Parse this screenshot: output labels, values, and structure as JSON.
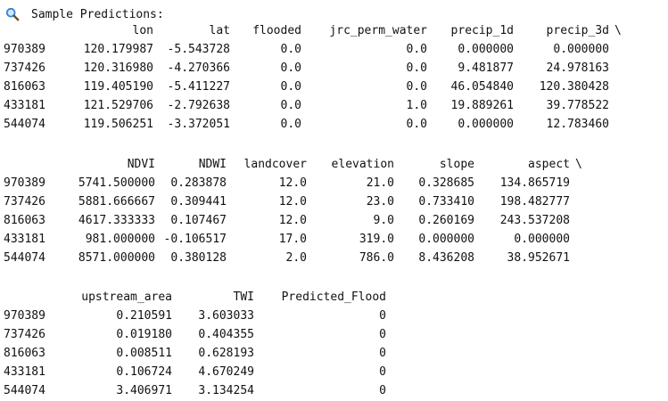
{
  "header": {
    "icon": "magnifier-icon",
    "title": "Sample Predictions:"
  },
  "blocks": [
    {
      "columns": [
        "lon",
        "lat",
        "flooded",
        "jrc_perm_water",
        "precip_1d",
        "precip_3d"
      ],
      "continuation": "\\",
      "rows": [
        {
          "index": "970389",
          "values": [
            "120.179987",
            "-5.543728",
            "0.0",
            "0.0",
            "0.000000",
            "0.000000"
          ]
        },
        {
          "index": "737426",
          "values": [
            "120.316980",
            "-4.270366",
            "0.0",
            "0.0",
            "9.481877",
            "24.978163"
          ]
        },
        {
          "index": "816063",
          "values": [
            "119.405190",
            "-5.411227",
            "0.0",
            "0.0",
            "46.054840",
            "120.380428"
          ]
        },
        {
          "index": "433181",
          "values": [
            "121.529706",
            "-2.792638",
            "0.0",
            "1.0",
            "19.889261",
            "39.778522"
          ]
        },
        {
          "index": "544074",
          "values": [
            "119.506251",
            "-3.372051",
            "0.0",
            "0.0",
            "0.000000",
            "12.783460"
          ]
        }
      ]
    },
    {
      "columns": [
        "NDVI",
        "NDWI",
        "landcover",
        "elevation",
        "slope",
        "aspect"
      ],
      "continuation": "\\",
      "rows": [
        {
          "index": "970389",
          "values": [
            "5741.500000",
            "0.283878",
            "12.0",
            "21.0",
            "0.328685",
            "134.865719"
          ]
        },
        {
          "index": "737426",
          "values": [
            "5881.666667",
            "0.309441",
            "12.0",
            "23.0",
            "0.733410",
            "198.482777"
          ]
        },
        {
          "index": "816063",
          "values": [
            "4617.333333",
            "0.107467",
            "12.0",
            "9.0",
            "0.260169",
            "243.537208"
          ]
        },
        {
          "index": "433181",
          "values": [
            "981.000000",
            "-0.106517",
            "17.0",
            "319.0",
            "0.000000",
            "0.000000"
          ]
        },
        {
          "index": "544074",
          "values": [
            "8571.000000",
            "0.380128",
            "2.0",
            "786.0",
            "8.436208",
            "38.952671"
          ]
        }
      ]
    },
    {
      "columns": [
        "upstream_area",
        "TWI",
        "Predicted_Flood"
      ],
      "continuation": "",
      "rows": [
        {
          "index": "970389",
          "values": [
            "0.210591",
            "3.603033",
            "0"
          ]
        },
        {
          "index": "737426",
          "values": [
            "0.019180",
            "0.404355",
            "0"
          ]
        },
        {
          "index": "816063",
          "values": [
            "0.008511",
            "0.628193",
            "0"
          ]
        },
        {
          "index": "433181",
          "values": [
            "0.106724",
            "4.670249",
            "0"
          ]
        },
        {
          "index": "544074",
          "values": [
            "3.406971",
            "3.134254",
            "0"
          ]
        }
      ]
    }
  ]
}
